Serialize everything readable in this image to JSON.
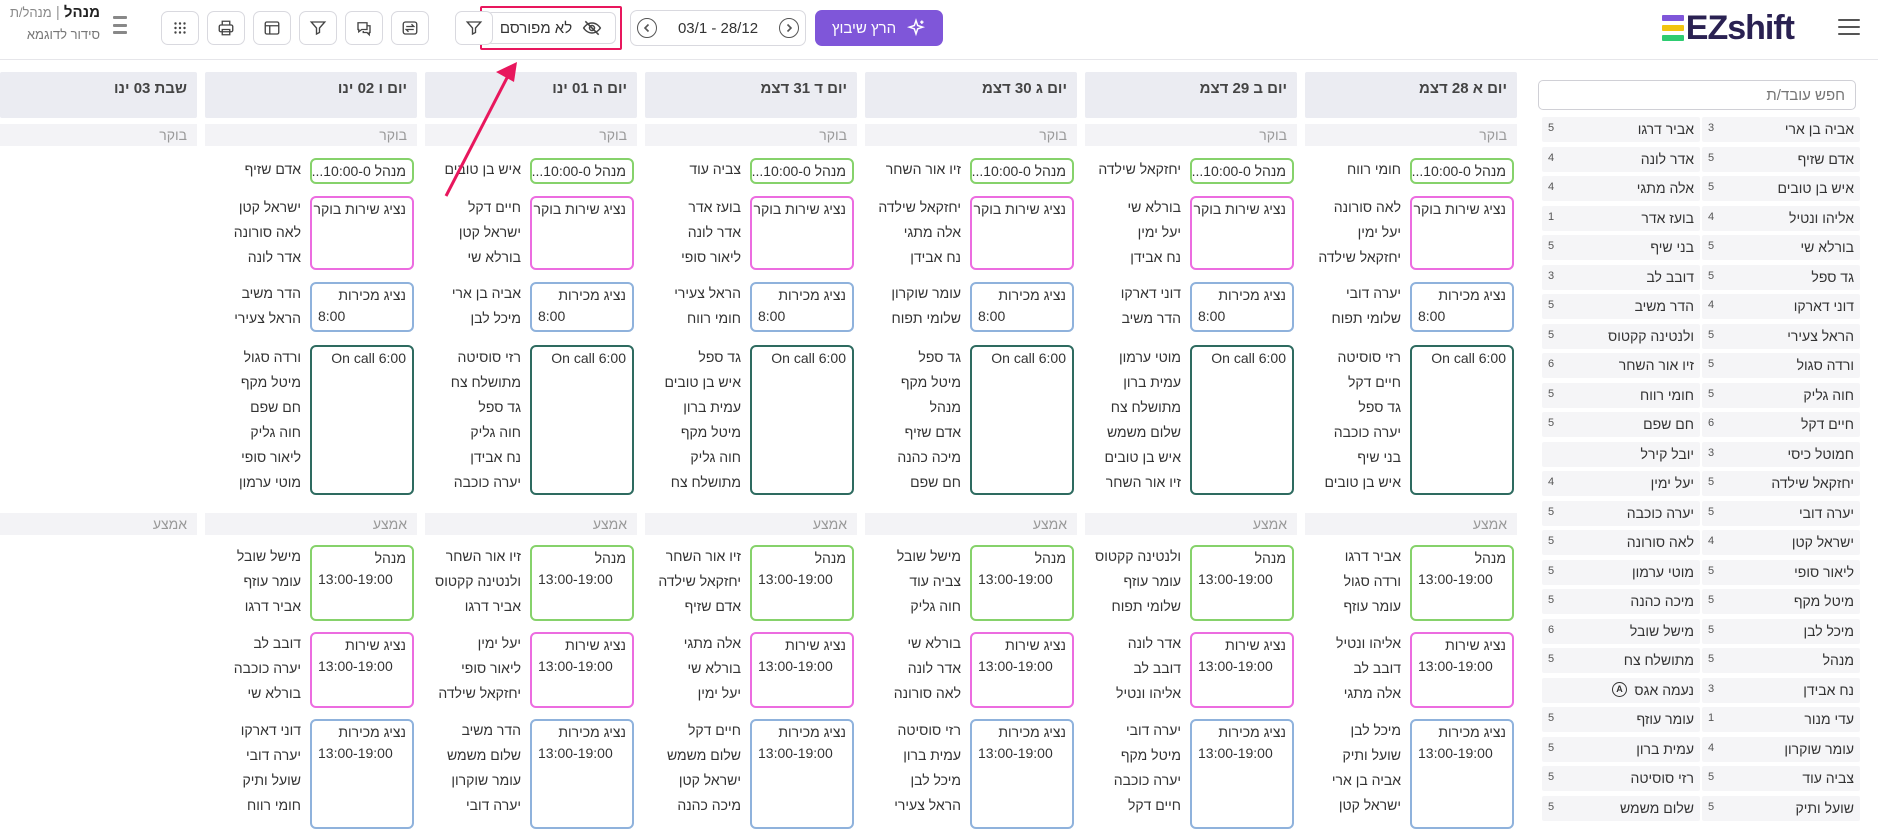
{
  "header": {
    "logo_text": "EZshift",
    "run_button_label": "הרץ שיבוץ",
    "date_range": "03/1 - 28/12",
    "publish_label": "לא מפורסם",
    "user_name": "מנהל",
    "user_separator": "|",
    "user_role": "מנהל/ת",
    "schedule_name": "סידור לדוגמא"
  },
  "colors": {
    "accent": "#7f56d9",
    "highlight": "#e8175d",
    "manager": "#86d26b",
    "service": "#ec6ce0",
    "sales": "#8fb2dc",
    "oncall": "#2e6b60"
  },
  "sidebar": {
    "search_placeholder": "חפש עובד/ת",
    "right_column": [
      {
        "name": "אביה בן ארי",
        "count": "3"
      },
      {
        "name": "אדם שזיף",
        "count": "5"
      },
      {
        "name": "איש בן טובים",
        "count": "5"
      },
      {
        "name": "אליהו ונטיל",
        "count": "4"
      },
      {
        "name": "בורלא שי",
        "count": "5"
      },
      {
        "name": "גד ספל",
        "count": "5"
      },
      {
        "name": "דוני דארקו",
        "count": "4"
      },
      {
        "name": "הראל צעירי",
        "count": "5"
      },
      {
        "name": "ורדה סגול",
        "count": "5"
      },
      {
        "name": "חוה גליק",
        "count": "5"
      },
      {
        "name": "חיים דקל",
        "count": "6"
      },
      {
        "name": "חמוטל כיסי",
        "count": "3"
      },
      {
        "name": "יחזקאל שילדה",
        "count": "5"
      },
      {
        "name": "יערה דובי",
        "count": "5"
      },
      {
        "name": "ישראל קטן",
        "count": "4"
      },
      {
        "name": "ליאור סופי",
        "count": "5"
      },
      {
        "name": "מיטל מקף",
        "count": "5"
      },
      {
        "name": "מיכל לבן",
        "count": "5"
      },
      {
        "name": "מנהל",
        "count": "5"
      },
      {
        "name": "נח אבידן",
        "count": "3"
      },
      {
        "name": "עדי מנור",
        "count": "1"
      },
      {
        "name": "עומר שוקרון",
        "count": "4"
      },
      {
        "name": "צביה עוד",
        "count": "5"
      },
      {
        "name": "שועל ותיק",
        "count": "5"
      }
    ],
    "left_column": [
      {
        "name": "אביר דרגו",
        "count": "5"
      },
      {
        "name": "אדר לונה",
        "count": "4"
      },
      {
        "name": "אלה מתגי",
        "count": "4"
      },
      {
        "name": "בועז אדר",
        "count": "1"
      },
      {
        "name": "בני שיף",
        "count": "5"
      },
      {
        "name": "דובב לב",
        "count": "3"
      },
      {
        "name": "הדר משיב",
        "count": "5"
      },
      {
        "name": "ולנטינה קקטוס",
        "count": "5"
      },
      {
        "name": "זיו אור השחר",
        "count": "6"
      },
      {
        "name": "חומי רווח",
        "count": "5"
      },
      {
        "name": "חם שפם",
        "count": "5"
      },
      {
        "name": "יובל קירל",
        "count": ""
      },
      {
        "name": "יעל ימין",
        "count": "4"
      },
      {
        "name": "יערה כוכבה",
        "count": "5"
      },
      {
        "name": "לאה סורונה",
        "count": "5"
      },
      {
        "name": "מוטי ערמון",
        "count": "5"
      },
      {
        "name": "מיכה כהנה",
        "count": "5"
      },
      {
        "name": "מישל שובל",
        "count": "6"
      },
      {
        "name": "מתושלח צח",
        "count": "5"
      },
      {
        "name": "נעמה אגס",
        "count": "",
        "flag": "A"
      },
      {
        "name": "עומר עוזף",
        "count": "5"
      },
      {
        "name": "עמית ברון",
        "count": "5"
      },
      {
        "name": "רזי סוסיטה",
        "count": "5"
      },
      {
        "name": "שלום משמש",
        "count": "5"
      }
    ]
  },
  "schedule": {
    "section_morning": "בוקר",
    "section_middle": "אמצע",
    "days": [
      {
        "header": "יום א 28 דצמ",
        "morning": {
          "manager": {
            "title": "מנהל 10:00-0...",
            "names": [
              "חומי רווח"
            ]
          },
          "service": {
            "title": "נציג שירות בוקר",
            "names": [
              "לאה סורונה",
              "יעל ימין",
              "יחזקאל שילדה"
            ]
          },
          "sales": {
            "title": "נציג מכירות",
            "time": "8:00",
            "names": [
              "יערה דובי",
              "שלומי תפוח"
            ]
          },
          "oncall": {
            "title": "On call 6:00",
            "names": [
              "רזי סוסיטה",
              "חיים דקל",
              "גד ספל",
              "יערה כוכבה",
              "בני שיף",
              "איש בן טובים"
            ]
          }
        },
        "middle": {
          "manager": {
            "title": "מנהל",
            "time": "13:00-19:00",
            "names": [
              "אביר דרגו",
              "ורדה סגול",
              "עומר עוזף"
            ]
          },
          "service": {
            "title": "נציג שירות",
            "time": "13:00-19:00",
            "names": [
              "אליהו ונטיל",
              "דובב לב",
              "אלה מתגי"
            ]
          },
          "sales": {
            "title": "נציג מכירות",
            "time": "13:00-19:00",
            "names": [
              "מיכל לבן",
              "שועל ותיק",
              "אביה בן ארי",
              "ישראל קטן"
            ]
          }
        }
      },
      {
        "header": "יום ב 29 דצמ",
        "morning": {
          "manager": {
            "title": "מנהל 10:00-0...",
            "names": [
              "יחזקאל שילדה"
            ]
          },
          "service": {
            "title": "נציג שירות בוקר",
            "names": [
              "בורלא שי",
              "יעל ימין",
              "נח אבידן"
            ]
          },
          "sales": {
            "title": "נציג מכירות",
            "time": "8:00",
            "names": [
              "דוני דארקו",
              "הדר משיב"
            ]
          },
          "oncall": {
            "title": "On call 6:00",
            "names": [
              "מוטי ערמון",
              "עמית ברון",
              "מתושלח צח",
              "שלום משמש",
              "איש בן טובים",
              "זיו אור השחר"
            ]
          }
        },
        "middle": {
          "manager": {
            "title": "מנהל",
            "time": "13:00-19:00",
            "names": [
              "ולנטינה קקטוס",
              "עומר עוזף",
              "שלומי תפוח"
            ]
          },
          "service": {
            "title": "נציג שירות",
            "time": "13:00-19:00",
            "names": [
              "אדר לונה",
              "דובב לב",
              "אליהו ונטיל"
            ]
          },
          "sales": {
            "title": "נציג מכירות",
            "time": "13:00-19:00",
            "names": [
              "יערה דובי",
              "מיטל מקף",
              "יערה כוכבה",
              "חיים דקל"
            ]
          }
        }
      },
      {
        "header": "יום ג 30 דצמ",
        "morning": {
          "manager": {
            "title": "מנהל 10:00-0...",
            "names": [
              "זיו אור השחר"
            ]
          },
          "service": {
            "title": "נציג שירות בוקר",
            "names": [
              "יחזקאל שילדה",
              "אלה מתגי",
              "נח אבידן"
            ]
          },
          "sales": {
            "title": "נציג מכירות",
            "time": "8:00",
            "names": [
              "עומר שוקרון",
              "שלומי תפוח"
            ]
          },
          "oncall": {
            "title": "On call 6:00",
            "names": [
              "גד ספל",
              "מיטל מקף",
              "מנהל",
              "אדם שזיף",
              "מיכה כהנה",
              "חם שפם"
            ]
          }
        },
        "middle": {
          "manager": {
            "title": "מנהל",
            "time": "13:00-19:00",
            "names": [
              "מישל שובל",
              "צביה עוד",
              "חוה גליק"
            ]
          },
          "service": {
            "title": "נציג שירות",
            "time": "13:00-19:00",
            "names": [
              "בורלא שי",
              "אדר לונה",
              "לאה סורונה"
            ]
          },
          "sales": {
            "title": "נציג מכירות",
            "time": "13:00-19:00",
            "names": [
              "רזי סוסיטה",
              "עמית ברון",
              "מיכל לבן",
              "הראל צעירי"
            ]
          }
        }
      },
      {
        "header": "יום ד 31 דצמ",
        "morning": {
          "manager": {
            "title": "מנהל 10:00-0...",
            "names": [
              "צביה עוד"
            ]
          },
          "service": {
            "title": "נציג שירות בוקר",
            "names": [
              "בועז אדר",
              "אדר לונה",
              "ליאור סופי"
            ]
          },
          "sales": {
            "title": "נציג מכירות",
            "time": "8:00",
            "names": [
              "הראל צעירי",
              "חומי רווח"
            ]
          },
          "oncall": {
            "title": "On call 6:00",
            "names": [
              "גד ספל",
              "איש בן טובים",
              "עמית ברון",
              "מיטל מקף",
              "חוה גליק",
              "מתושלח צח"
            ]
          }
        },
        "middle": {
          "manager": {
            "title": "מנהל",
            "time": "13:00-19:00",
            "names": [
              "זיו אור השחר",
              "יחזקאל שילדה",
              "אדם שזיף"
            ]
          },
          "service": {
            "title": "נציג שירות",
            "time": "13:00-19:00",
            "names": [
              "אלה מתגי",
              "בורלא שי",
              "יעל ימין"
            ]
          },
          "sales": {
            "title": "נציג מכירות",
            "time": "13:00-19:00",
            "names": [
              "חיים דקל",
              "שלום משמש",
              "ישראל קטן",
              "מיכה כהנה"
            ]
          }
        }
      },
      {
        "header": "יום ה 01 ינו",
        "morning": {
          "manager": {
            "title": "מנהל 10:00-0...",
            "names": [
              "איש בן טובים"
            ]
          },
          "service": {
            "title": "נציג שירות בוקר",
            "names": [
              "חיים דקל",
              "ישראל קטן",
              "בורלא שי"
            ]
          },
          "sales": {
            "title": "נציג מכירות",
            "time": "8:00",
            "names": [
              "אביה בן ארי",
              "מיכל לבן"
            ]
          },
          "oncall": {
            "title": "On call 6:00",
            "names": [
              "רזי סוסיטה",
              "מתושלח צח",
              "גד ספל",
              "חוה גליק",
              "נח אבידן",
              "יערה כוכבה"
            ]
          }
        },
        "middle": {
          "manager": {
            "title": "מנהל",
            "time": "13:00-19:00",
            "names": [
              "זיו אור השחר",
              "ולנטינה קקטוס",
              "אביר דרגו"
            ]
          },
          "service": {
            "title": "נציג שירות",
            "time": "13:00-19:00",
            "names": [
              "יעל ימין",
              "ליאור סופי",
              "יחזקאל שילדה"
            ]
          },
          "sales": {
            "title": "נציג מכירות",
            "time": "13:00-19:00",
            "names": [
              "הדר משיב",
              "שלום משמש",
              "עומר שוקרון",
              "יערה דובי"
            ]
          }
        }
      },
      {
        "header": "יום ו 02 ינו",
        "morning": {
          "manager": {
            "title": "מנהל 10:00-0...",
            "names": [
              "אדם שזיף"
            ]
          },
          "service": {
            "title": "נציג שירות בוקר",
            "names": [
              "ישראל קטן",
              "לאה סורונה",
              "אדר לונה"
            ]
          },
          "sales": {
            "title": "נציג מכירות",
            "time": "8:00",
            "names": [
              "הדר משיב",
              "הראל צעירי"
            ]
          },
          "oncall": {
            "title": "On call 6:00",
            "names": [
              "ורדה סגול",
              "מיטל מקף",
              "חם שפם",
              "חוה גליק",
              "ליאור סופי",
              "מוטי ערמון"
            ]
          }
        },
        "middle": {
          "manager": {
            "title": "מנהל",
            "time": "13:00-19:00",
            "names": [
              "מישל שובל",
              "עומר עוזף",
              "אביר דרגו"
            ]
          },
          "service": {
            "title": "נציג שירות",
            "time": "13:00-19:00",
            "names": [
              "דובב לב",
              "יערה כוכבה",
              "בורלא שי"
            ]
          },
          "sales": {
            "title": "נציג מכירות",
            "time": "13:00-19:00",
            "names": [
              "דוני דארקו",
              "יערה דובי",
              "שועל ותיק",
              "חומי רווח"
            ]
          }
        }
      },
      {
        "header": "שבת 03 ינו"
      }
    ]
  }
}
